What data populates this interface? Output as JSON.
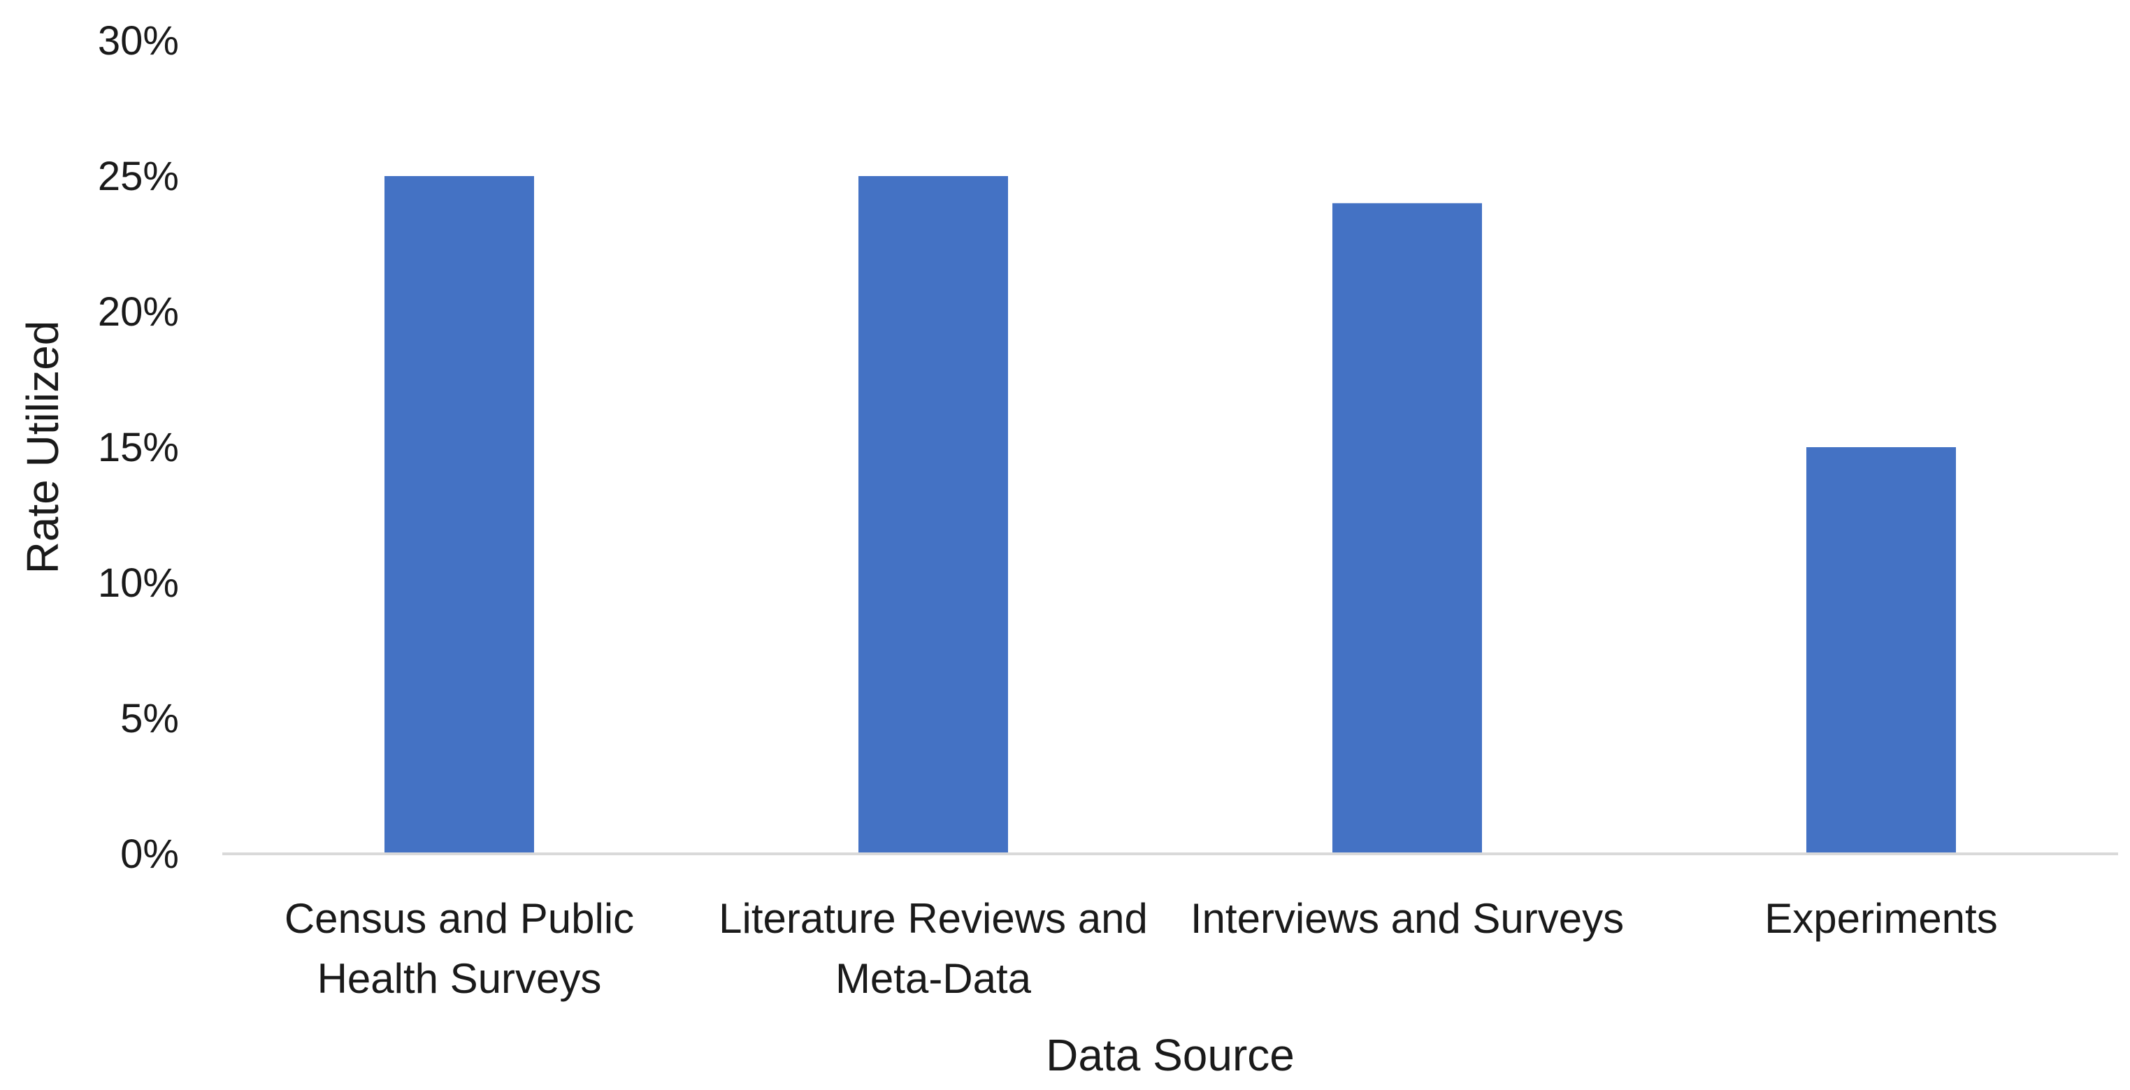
{
  "chart_data": {
    "type": "bar",
    "categories": [
      [
        "Census and Public",
        "Health Surveys"
      ],
      [
        "Literature Reviews and",
        "Meta-Data"
      ],
      [
        "Interviews and Surveys"
      ],
      [
        "Experiments"
      ]
    ],
    "values": [
      0.25,
      0.25,
      0.24,
      0.15
    ],
    "xlabel": "Data Source",
    "ylabel": "Rate Utilized",
    "ylim": [
      0,
      0.3
    ],
    "ytick_values": [
      0,
      0.05,
      0.1,
      0.15,
      0.2,
      0.25,
      0.3
    ],
    "ytick_labels": [
      "0%",
      "5%",
      "10%",
      "15%",
      "20%",
      "25%",
      "30%"
    ],
    "bar_color": "#4472C4",
    "axis_color": "#D9D9D9",
    "gridlines": false,
    "legend": "none"
  }
}
